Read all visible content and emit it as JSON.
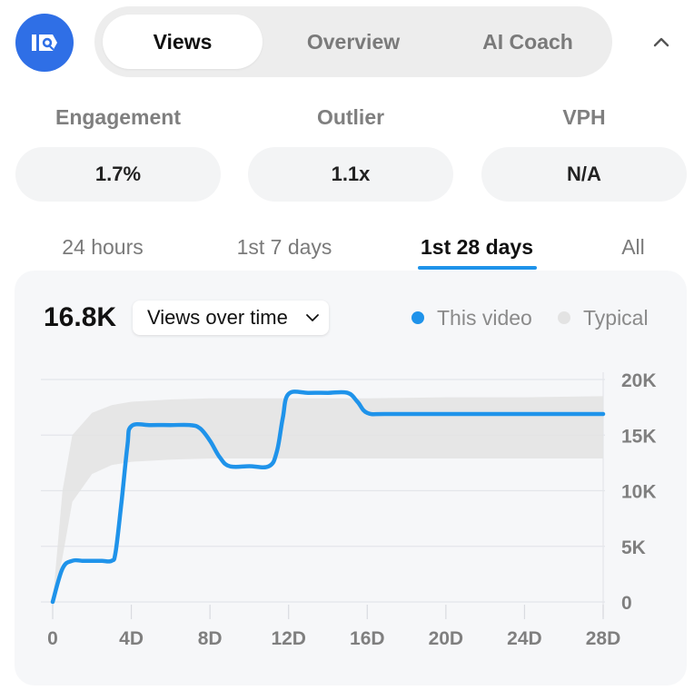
{
  "logo": {
    "text": "IQ",
    "icon": "vidiq-logo-icon",
    "color": "#2f6fe6"
  },
  "tabs": [
    {
      "label": "Views",
      "active": true
    },
    {
      "label": "Overview",
      "active": false
    },
    {
      "label": "AI Coach",
      "active": false
    }
  ],
  "collapse_icon": "chevron-up-icon",
  "metrics": [
    {
      "label": "Engagement",
      "value": "1.7%"
    },
    {
      "label": "Outlier",
      "value": "1.1x"
    },
    {
      "label": "VPH",
      "value": "N/A"
    }
  ],
  "periods": [
    {
      "label": "24 hours",
      "active": false
    },
    {
      "label": "1st 7 days",
      "active": false
    },
    {
      "label": "1st 28 days",
      "active": true
    },
    {
      "label": "All",
      "active": false
    }
  ],
  "summary": {
    "total": "16.8K",
    "metric_select": "Views over time"
  },
  "legend": [
    {
      "label": "This video",
      "color": "#1f93ea"
    },
    {
      "label": "Typical",
      "color": "#e3e3e3"
    }
  ],
  "chart_data": {
    "type": "line",
    "xlabel": "",
    "ylabel": "",
    "x_tick_labels": [
      "0",
      "4D",
      "8D",
      "12D",
      "16D",
      "20D",
      "24D",
      "28D"
    ],
    "y_tick_labels": [
      "0",
      "5K",
      "10K",
      "15K",
      "20K"
    ],
    "xlim": [
      0,
      28
    ],
    "ylim": [
      0,
      20000
    ],
    "y_axis_position": "right",
    "grid": true,
    "series": [
      {
        "name": "This video",
        "color": "#1f93ea",
        "x": [
          0,
          0.5,
          1,
          1.5,
          2,
          2.5,
          3,
          3.2,
          3.5,
          3.8,
          4,
          5,
          6,
          7,
          7.5,
          8,
          8.5,
          9,
          10,
          11,
          11.4,
          11.7,
          12,
          13,
          14,
          15,
          15.5,
          16,
          17,
          20,
          24,
          28
        ],
        "y": [
          0,
          3000,
          3700,
          3700,
          3700,
          3700,
          3700,
          4500,
          9000,
          14000,
          15800,
          15900,
          15900,
          15900,
          15600,
          14500,
          13000,
          12200,
          12200,
          12200,
          13500,
          16500,
          18700,
          18800,
          18800,
          18800,
          18000,
          17000,
          16900,
          16900,
          16900,
          16900
        ]
      },
      {
        "name": "Typical",
        "type": "band",
        "color": "#e3e3e3",
        "x": [
          0,
          0.5,
          1,
          2,
          3,
          4,
          6,
          8,
          10,
          12,
          16,
          20,
          24,
          28
        ],
        "upper": [
          0,
          10000,
          15000,
          17000,
          17700,
          18000,
          18200,
          18300,
          18300,
          18300,
          18300,
          18400,
          18400,
          18500
        ],
        "lower": [
          0,
          4000,
          9000,
          11500,
          12300,
          12600,
          12800,
          12900,
          12900,
          12900,
          12900,
          12900,
          12900,
          12900
        ]
      }
    ]
  }
}
